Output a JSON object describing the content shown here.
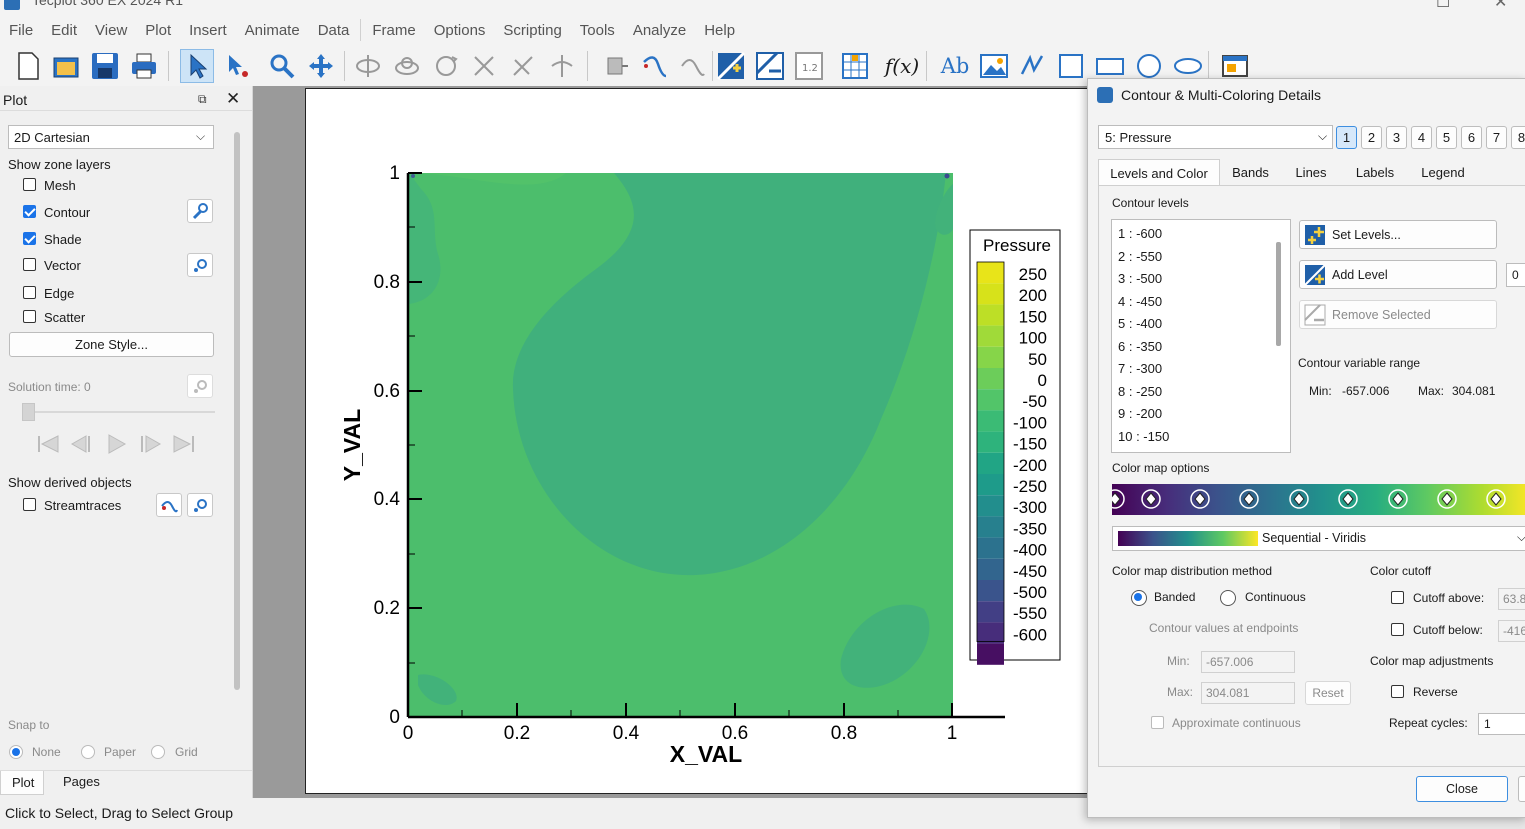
{
  "app": {
    "title": "Tecplot 360 EX 2024 R1"
  },
  "menu": [
    "File",
    "Edit",
    "View",
    "Plot",
    "Insert",
    "Animate",
    "Data",
    "Frame",
    "Options",
    "Scripting",
    "Tools",
    "Analyze",
    "Help"
  ],
  "toolbar": {
    "icons": [
      "new-layout",
      "open-layout",
      "save-layout",
      "print",
      "select",
      "adjust",
      "zoom",
      "translate",
      "rotate-spherical",
      "rotate-rollerball",
      "rotate-twist",
      "rotate-x",
      "rotate-y",
      "rotate-z",
      "probe",
      "streamtrace",
      "streamtrace-extract",
      "contour-add",
      "contour-remove",
      "contour-levels",
      "slice",
      "formula",
      "text",
      "image",
      "polyline",
      "square",
      "rectangle",
      "circle",
      "ellipse",
      "frame"
    ],
    "formula_label": "f(x)",
    "text_label": "Ab"
  },
  "plot_panel": {
    "title": "Plot",
    "plot_type": "2D Cartesian",
    "show_zone_layers": "Show zone layers",
    "layers": [
      {
        "label": "Mesh",
        "checked": false
      },
      {
        "label": "Contour",
        "checked": true
      },
      {
        "label": "Shade",
        "checked": true
      },
      {
        "label": "Vector",
        "checked": false
      },
      {
        "label": "Edge",
        "checked": false
      },
      {
        "label": "Scatter",
        "checked": false
      }
    ],
    "zone_style_button": "Zone Style...",
    "solution_time": "Solution time: 0",
    "show_derived": "Show derived objects",
    "streamtraces": "Streamtraces",
    "snap_to": "Snap to",
    "snap_options": [
      "None",
      "Paper",
      "Grid"
    ],
    "bottom_tabs": [
      "Plot",
      "Pages"
    ]
  },
  "status": {
    "message": "Click to Select, Drag to Select Group"
  },
  "plot": {
    "xlabel": "X_VAL",
    "ylabel": "Y_VAL",
    "x_ticks": [
      "0",
      "0.2",
      "0.4",
      "0.6",
      "0.8",
      "1"
    ],
    "y_ticks": [
      "0",
      "0.2",
      "0.4",
      "0.6",
      "0.8",
      "1"
    ],
    "legend_title": "Pressure",
    "legend_levels": [
      "250",
      "200",
      "150",
      "100",
      "50",
      "0",
      "-50",
      "-100",
      "-150",
      "-200",
      "-250",
      "-300",
      "-350",
      "-400",
      "-450",
      "-500",
      "-550",
      "-600"
    ],
    "colors": {
      "background_field": "#4fc06a",
      "blob": "#40b07a",
      "dark_spot": "#3a4a90"
    }
  },
  "dialog": {
    "title": "Contour & Multi-Coloring Details",
    "variable": "5: Pressure",
    "group_buttons": [
      "1",
      "2",
      "3",
      "4",
      "5",
      "6",
      "7",
      "8"
    ],
    "tabs": [
      "Levels and Color",
      "Bands",
      "Lines",
      "Labels",
      "Legend"
    ],
    "contour_levels_label": "Contour levels",
    "levels": [
      "1 : -600",
      "2 : -550",
      "3 : -500",
      "4 : -450",
      "5 : -400",
      "6 : -350",
      "7 : -300",
      "8 : -250",
      "9 : -200",
      "10 : -150"
    ],
    "set_levels": "Set Levels...",
    "add_level": "Add Level",
    "add_level_value": "0",
    "remove_selected": "Remove Selected",
    "range_label": "Contour variable range",
    "min_label": "Min:",
    "min_value": "-657.006",
    "max_label": "Max:",
    "max_value": "304.081",
    "colormap_options": "Color map options",
    "colormap_name": "Sequential - Viridis",
    "distribution_label": "Color map distribution method",
    "banded": "Banded",
    "continuous": "Continuous",
    "endpoints_label": "Contour values at endpoints",
    "ep_min_label": "Min:",
    "ep_min": "-657.006",
    "ep_max_label": "Max:",
    "ep_max": "304.081",
    "reset": "Reset",
    "approx_continuous": "Approximate continuous",
    "cutoff_label": "Color cutoff",
    "cutoff_above": "Cutoff above:",
    "cutoff_above_value": "63.8",
    "cutoff_below": "Cutoff below:",
    "cutoff_below_value": "-416",
    "adjust_label": "Color map adjustments",
    "reverse": "Reverse",
    "repeat_cycles": "Repeat cycles:",
    "repeat_value": "1",
    "close": "Close"
  }
}
